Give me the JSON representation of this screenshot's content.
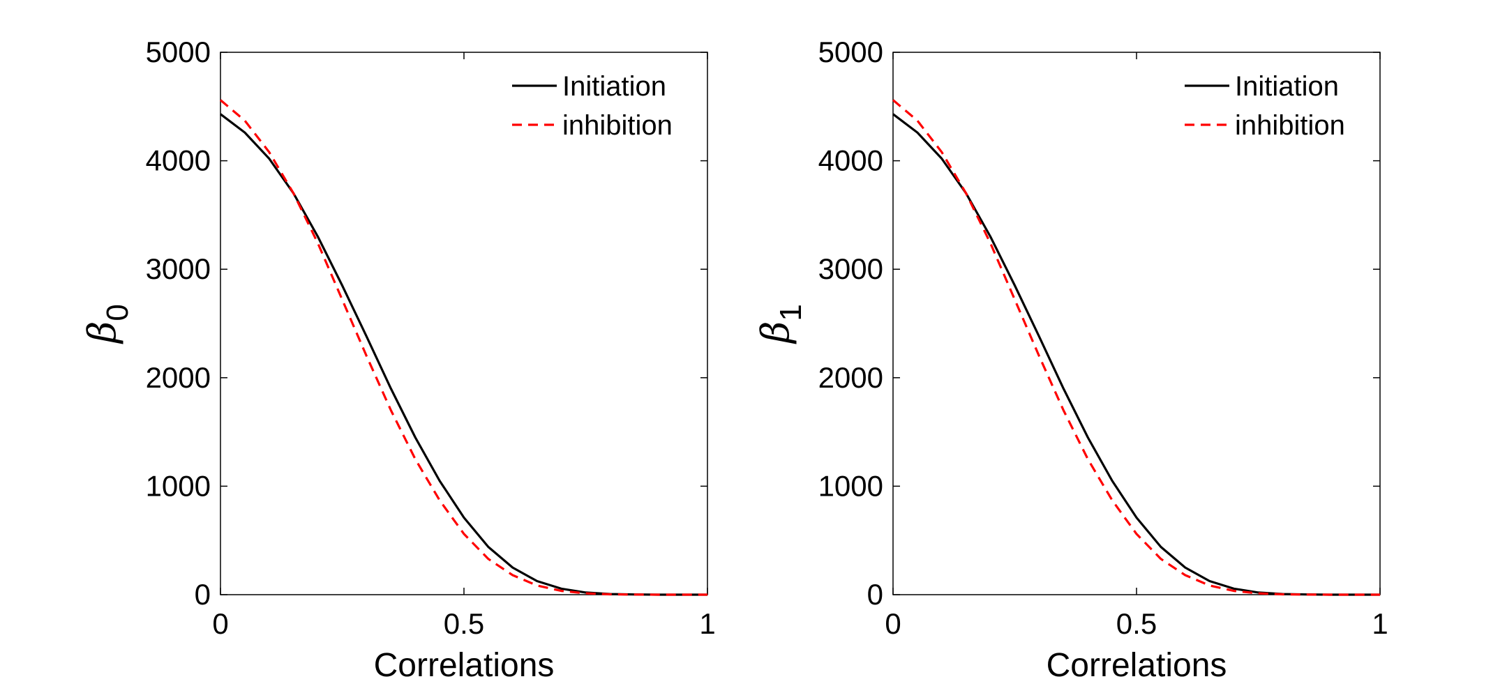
{
  "chart_data": [
    {
      "type": "line",
      "xlabel": "Correlations",
      "ylabel_symbol": "β",
      "ylabel_sub": "0",
      "xlim": [
        0,
        1
      ],
      "ylim": [
        0,
        5000
      ],
      "xticks": [
        "0",
        "0.5",
        "1"
      ],
      "yticks": [
        "0",
        "1000",
        "2000",
        "3000",
        "4000",
        "5000"
      ],
      "legend_position": "top-right",
      "grid": false,
      "series": [
        {
          "name": "Initiation",
          "color": "#000000",
          "dash": "solid",
          "x": [
            0,
            0.05,
            0.1,
            0.15,
            0.2,
            0.25,
            0.3,
            0.35,
            0.4,
            0.45,
            0.5,
            0.55,
            0.6,
            0.65,
            0.7,
            0.75,
            0.8,
            0.85,
            0.9,
            0.95,
            1.0
          ],
          "y": [
            4430,
            4260,
            4020,
            3700,
            3300,
            2850,
            2380,
            1900,
            1450,
            1050,
            710,
            440,
            250,
            125,
            55,
            20,
            6,
            2,
            0,
            0,
            0
          ]
        },
        {
          "name": "inhibition",
          "color": "#ff0000",
          "dash": "dashed",
          "x": [
            0,
            0.05,
            0.1,
            0.15,
            0.2,
            0.25,
            0.3,
            0.35,
            0.4,
            0.45,
            0.5,
            0.55,
            0.6,
            0.65,
            0.7,
            0.75,
            0.8,
            0.85,
            0.9,
            0.95,
            1.0
          ],
          "y": [
            4560,
            4370,
            4080,
            3700,
            3240,
            2720,
            2200,
            1700,
            1250,
            870,
            560,
            330,
            180,
            85,
            35,
            12,
            3,
            1,
            0,
            0,
            0
          ]
        }
      ]
    },
    {
      "type": "line",
      "xlabel": "Correlations",
      "ylabel_symbol": "β",
      "ylabel_sub": "1",
      "xlim": [
        0,
        1
      ],
      "ylim": [
        0,
        5000
      ],
      "xticks": [
        "0",
        "0.5",
        "1"
      ],
      "yticks": [
        "0",
        "1000",
        "2000",
        "3000",
        "4000",
        "5000"
      ],
      "legend_position": "top-right",
      "grid": false,
      "series": [
        {
          "name": "Initiation",
          "color": "#000000",
          "dash": "solid",
          "x": [
            0,
            0.05,
            0.1,
            0.15,
            0.2,
            0.25,
            0.3,
            0.35,
            0.4,
            0.45,
            0.5,
            0.55,
            0.6,
            0.65,
            0.7,
            0.75,
            0.8,
            0.85,
            0.9,
            0.95,
            1.0
          ],
          "y": [
            4430,
            4260,
            4020,
            3700,
            3300,
            2850,
            2380,
            1900,
            1450,
            1050,
            710,
            440,
            250,
            125,
            55,
            20,
            6,
            2,
            0,
            0,
            0
          ]
        },
        {
          "name": "inhibition",
          "color": "#ff0000",
          "dash": "dashed",
          "x": [
            0,
            0.05,
            0.1,
            0.15,
            0.2,
            0.25,
            0.3,
            0.35,
            0.4,
            0.45,
            0.5,
            0.55,
            0.6,
            0.65,
            0.7,
            0.75,
            0.8,
            0.85,
            0.9,
            0.95,
            1.0
          ],
          "y": [
            4560,
            4370,
            4080,
            3700,
            3240,
            2720,
            2200,
            1700,
            1250,
            870,
            560,
            330,
            180,
            85,
            35,
            12,
            3,
            1,
            0,
            0,
            0
          ]
        }
      ]
    }
  ]
}
